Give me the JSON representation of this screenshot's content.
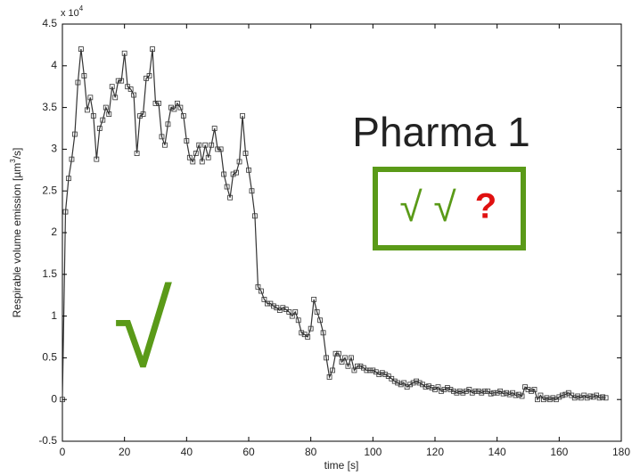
{
  "chart_data": {
    "type": "line",
    "y_label": {
      "before": "Respirable volume emission [µm",
      "sup": "3",
      "after": "/s]"
    },
    "x_label": "time [s]",
    "multiplier": {
      "base": "x 10",
      "exponent": "4"
    },
    "annotations": {
      "title": "Pharma 1",
      "checks": "√ √",
      "question": "?",
      "big_check": "√"
    },
    "xlim": [
      0,
      180
    ],
    "xticks": [
      0,
      20,
      40,
      60,
      80,
      100,
      120,
      140,
      160,
      180
    ],
    "ylim": [
      -0.5,
      4.5
    ],
    "yticks": [
      -0.5,
      0,
      0.5,
      1,
      1.5,
      2,
      2.5,
      3,
      3.5,
      4,
      4.5
    ],
    "x": [
      0,
      1,
      2,
      3,
      4,
      5,
      6,
      7,
      8,
      9,
      10,
      11,
      12,
      13,
      14,
      15,
      16,
      17,
      18,
      19,
      20,
      21,
      22,
      23,
      24,
      25,
      26,
      27,
      28,
      29,
      30,
      31,
      32,
      33,
      34,
      35,
      36,
      37,
      38,
      39,
      40,
      41,
      42,
      43,
      44,
      45,
      46,
      47,
      48,
      49,
      50,
      51,
      52,
      53,
      54,
      55,
      56,
      57,
      58,
      59,
      60,
      61,
      62,
      63,
      64,
      65,
      66,
      67,
      68,
      69,
      70,
      71,
      72,
      73,
      74,
      75,
      76,
      77,
      78,
      79,
      80,
      81,
      82,
      83,
      84,
      85,
      86,
      87,
      88,
      89,
      90,
      91,
      92,
      93,
      94,
      95,
      96,
      97,
      98,
      99,
      100,
      101,
      102,
      103,
      104,
      105,
      106,
      107,
      108,
      109,
      110,
      111,
      112,
      113,
      114,
      115,
      116,
      117,
      118,
      119,
      120,
      121,
      122,
      123,
      124,
      125,
      126,
      127,
      128,
      129,
      130,
      131,
      132,
      133,
      134,
      135,
      136,
      137,
      138,
      139,
      140,
      141,
      142,
      143,
      144,
      145,
      146,
      147,
      148,
      149,
      150,
      151,
      152,
      153,
      154,
      155,
      156,
      157,
      158,
      159,
      160,
      161,
      162,
      163,
      164,
      165,
      166,
      167,
      168,
      169,
      170,
      171,
      172,
      173,
      174,
      175
    ],
    "series": [
      {
        "color": "#333333",
        "values": [
          0,
          2.25,
          2.65,
          2.88,
          3.18,
          3.8,
          4.2,
          3.88,
          3.47,
          3.62,
          3.4,
          2.88,
          3.25,
          3.35,
          3.5,
          3.42,
          3.75,
          3.62,
          3.82,
          3.82,
          4.15,
          3.75,
          3.72,
          3.65,
          2.95,
          3.4,
          3.42,
          3.85,
          3.88,
          4.2,
          3.55,
          3.55,
          3.15,
          3.05,
          3.3,
          3.5,
          3.48,
          3.55,
          3.5,
          3.4,
          3.1,
          2.9,
          2.85,
          2.95,
          3.05,
          2.85,
          3.05,
          2.9,
          3.05,
          3.25,
          3.0,
          3.0,
          2.7,
          2.55,
          2.42,
          2.7,
          2.72,
          2.85,
          3.4,
          2.95,
          2.75,
          2.5,
          2.2,
          1.35,
          1.3,
          1.2,
          1.15,
          1.15,
          1.12,
          1.1,
          1.07,
          1.1,
          1.08,
          1.05,
          1.0,
          1.05,
          0.95,
          0.8,
          0.78,
          0.75,
          0.85,
          1.2,
          1.05,
          0.95,
          0.8,
          0.5,
          0.27,
          0.35,
          0.55,
          0.55,
          0.45,
          0.5,
          0.4,
          0.5,
          0.35,
          0.4,
          0.4,
          0.38,
          0.35,
          0.35,
          0.35,
          0.33,
          0.3,
          0.32,
          0.3,
          0.28,
          0.25,
          0.22,
          0.2,
          0.18,
          0.2,
          0.15,
          0.18,
          0.2,
          0.22,
          0.2,
          0.18,
          0.15,
          0.16,
          0.14,
          0.12,
          0.15,
          0.1,
          0.12,
          0.14,
          0.12,
          0.1,
          0.08,
          0.1,
          0.08,
          0.1,
          0.12,
          0.08,
          0.1,
          0.1,
          0.08,
          0.1,
          0.1,
          0.07,
          0.08,
          0.08,
          0.1,
          0.07,
          0.08,
          0.06,
          0.08,
          0.05,
          0.06,
          0.04,
          0.15,
          0.12,
          0.1,
          0.12,
          0.0,
          0.05,
          0.0,
          0.02,
          0.0,
          0.02,
          0.0,
          0.03,
          0.05,
          0.06,
          0.08,
          0.05,
          0.02,
          0.04,
          0.02,
          0.05,
          0.02,
          0.04,
          0.03,
          0.05,
          0.02,
          0.03,
          0.02
        ]
      }
    ],
    "marker": "square",
    "annotation_colors": {
      "title": "#222222",
      "checks": "#5a9a18",
      "question": "#e01010",
      "box": "#5a9a18"
    }
  }
}
